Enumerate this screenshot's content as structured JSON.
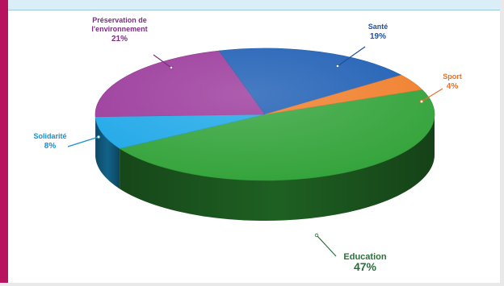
{
  "chart_data": {
    "type": "pie",
    "slices": [
      {
        "label": "Education",
        "value": 47,
        "value_label": "47%",
        "color": "#33a33a"
      },
      {
        "label": "Solidarité",
        "value": 8,
        "value_label": "8%",
        "color": "#1fa8e8"
      },
      {
        "label": "Préservation de l'environnement",
        "label_lines": [
          "Préservation de",
          "l'environnement"
        ],
        "value": 21,
        "value_label": "21%",
        "color": "#9b3a9c"
      },
      {
        "label": "Santé",
        "value": 19,
        "value_label": "19%",
        "color": "#1f5fb5"
      },
      {
        "label": "Sport",
        "value": 4,
        "value_label": "4%",
        "color": "#f07f2c"
      }
    ],
    "text_colors": {
      "Santé": "#1f4f9e",
      "Sport": "#e8702a",
      "Préservation de l'environnement": "#7b2d82",
      "Solidarité": "#1a8fd0",
      "Education": "#2a6f3a"
    },
    "style": "3d",
    "legend": "none"
  }
}
